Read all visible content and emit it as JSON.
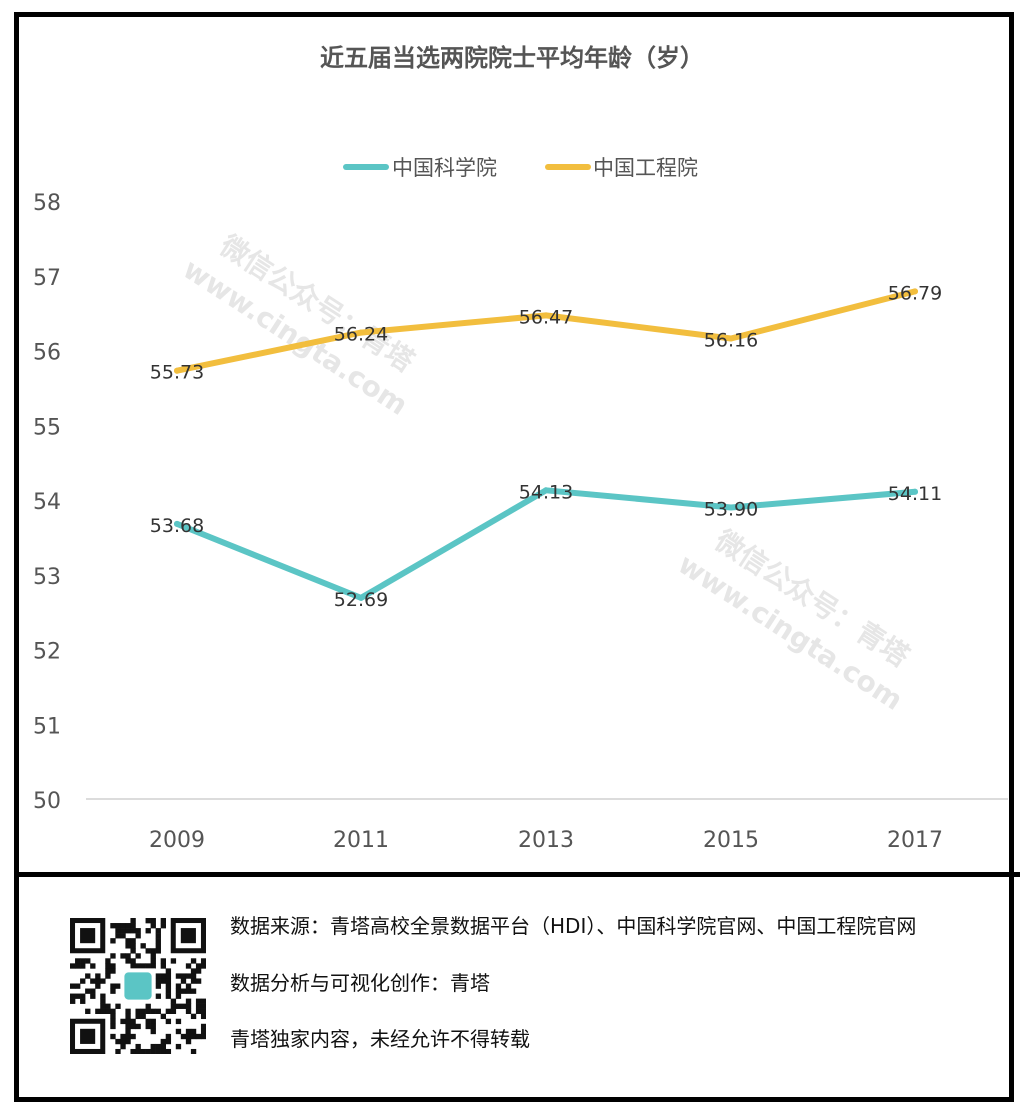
{
  "chart_data": {
    "type": "line",
    "title": "近五届当选两院院士平均年龄（岁）",
    "categories": [
      "2009",
      "2011",
      "2013",
      "2015",
      "2017"
    ],
    "ylim": [
      50,
      58
    ],
    "yticks": [
      "50",
      "51",
      "52",
      "53",
      "54",
      "55",
      "56",
      "57",
      "58"
    ],
    "series": [
      {
        "name": "中国科学院",
        "color": "#5bc5c5",
        "values": [
          53.68,
          52.69,
          54.13,
          53.9,
          54.11
        ],
        "labels": [
          "53.68",
          "52.69",
          "54.13",
          "53.90",
          "54.11"
        ]
      },
      {
        "name": "中国工程院",
        "color": "#f2be3e",
        "values": [
          55.73,
          56.24,
          56.47,
          56.16,
          56.79
        ],
        "labels": [
          "55.73",
          "56.24",
          "56.47",
          "56.16",
          "56.79"
        ]
      }
    ],
    "legend_position": "top-center"
  },
  "watermark": {
    "line1": "微信公众号：青塔",
    "line2": "www.cingta.com"
  },
  "footer": {
    "source": "数据来源：青塔高校全景数据平台（HDI）、中国科学院官网、中国工程院官网",
    "credit": "数据分析与可视化创作：青塔",
    "copyright": "青塔独家内容，未经允许不得转载"
  }
}
